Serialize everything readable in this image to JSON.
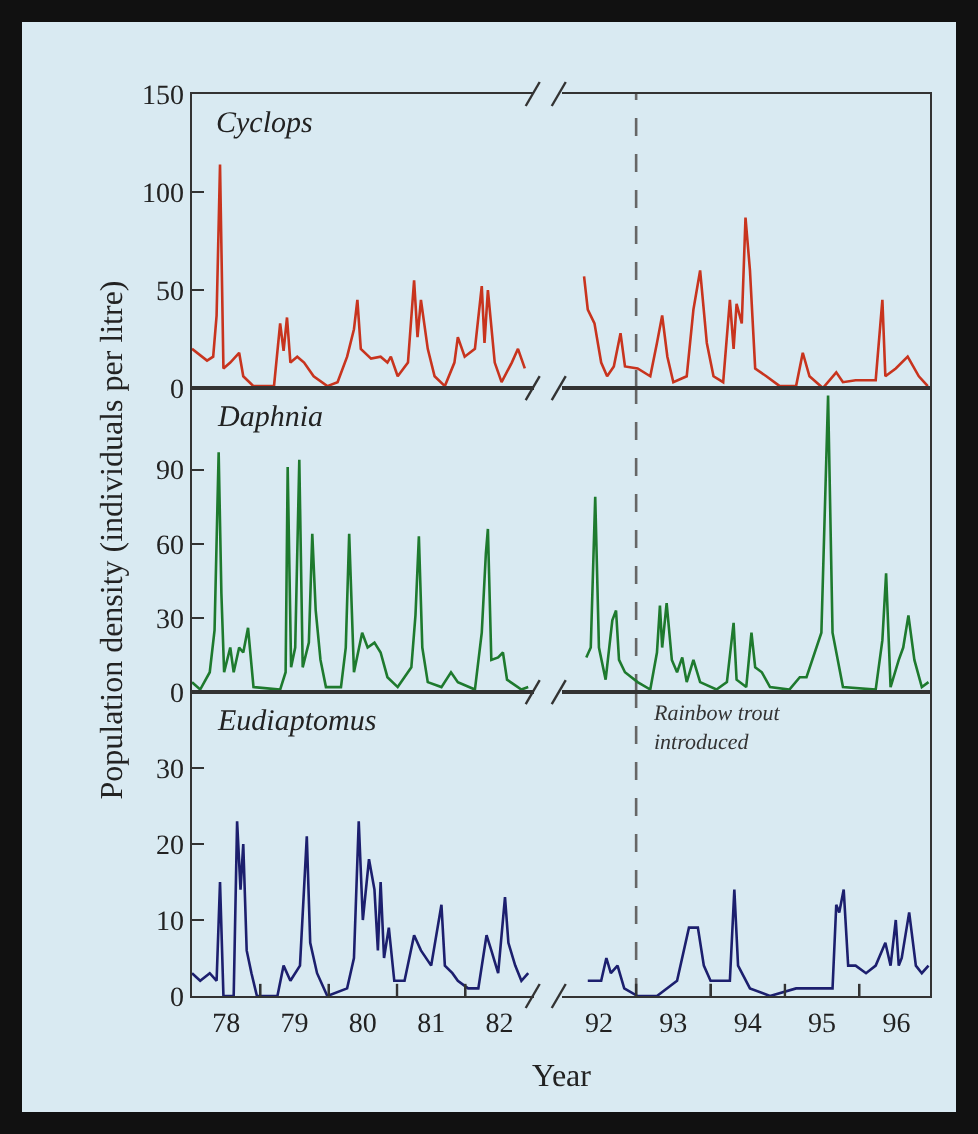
{
  "chart_data": [
    {
      "type": "line",
      "annotations": [
        "Cyclops"
      ],
      "tick_labels": "y",
      "xlim": [
        77.5,
        82.5
      ],
      "ylim": [
        0,
        150
      ],
      "yticks": [
        0,
        50,
        100,
        150
      ],
      "xticks": [
        78,
        79,
        80,
        81,
        82
      ],
      "x": [
        77.5,
        77.72,
        77.81,
        77.86,
        77.91,
        77.96,
        78.06,
        78.19,
        78.25,
        78.4,
        78.7,
        78.79,
        78.84,
        78.89,
        78.94,
        79.04,
        79.14,
        79.28,
        79.48,
        79.63,
        79.77,
        79.87,
        79.92,
        79.97,
        80.12,
        80.26,
        80.36,
        80.41,
        80.51,
        80.66,
        80.75,
        80.8,
        80.85,
        80.95,
        81.05,
        81.2,
        81.34,
        81.39,
        81.49,
        81.64,
        81.74,
        81.78,
        81.83,
        81.93,
        82.03,
        82.18,
        82.27,
        82.37
      ],
      "series": [
        {
          "color": "#c8341e",
          "values": [
            20,
            14,
            16,
            37,
            114,
            10,
            13,
            18,
            6,
            1,
            1,
            33,
            19,
            36,
            13,
            16,
            13,
            6,
            1,
            3,
            16,
            30,
            45,
            20,
            15,
            16,
            13,
            16,
            6,
            13,
            55,
            26,
            45,
            20,
            6,
            1,
            13,
            26,
            16,
            20,
            52,
            23,
            50,
            13,
            3,
            13,
            20,
            10
          ]
        }
      ]
    },
    {
      "type": "line",
      "tick_labels": false,
      "xlim": [
        91.5,
        96.45
      ],
      "ylim": [
        0,
        150
      ],
      "yticks": [
        0,
        50,
        100,
        150
      ],
      "xticks": [
        92,
        93,
        94,
        95,
        96
      ],
      "ref_lines": [
        {
          "axis": "x",
          "value": 92.5,
          "color": "#666666",
          "line_style": "dashed"
        }
      ],
      "x": [
        91.8,
        91.85,
        91.94,
        92.03,
        92.11,
        92.2,
        92.29,
        92.35,
        92.52,
        92.69,
        92.78,
        92.85,
        92.92,
        93.0,
        93.18,
        93.27,
        93.36,
        93.45,
        93.54,
        93.67,
        93.76,
        93.81,
        93.85,
        93.92,
        93.97,
        94.03,
        94.1,
        94.25,
        94.43,
        94.65,
        94.74,
        94.83,
        95.01,
        95.19,
        95.28,
        95.45,
        95.72,
        95.81,
        95.85,
        95.99,
        96.15,
        96.3,
        96.42
      ],
      "series": [
        {
          "color": "#c8341e",
          "values": [
            57,
            40,
            33,
            13,
            6,
            11,
            28,
            11,
            10,
            6,
            23,
            37,
            16,
            3,
            6,
            40,
            60,
            23,
            6,
            3,
            45,
            20,
            43,
            33,
            87,
            60,
            10,
            6,
            1,
            1,
            18,
            6,
            0,
            8,
            3,
            4,
            4,
            45,
            6,
            10,
            16,
            6,
            1
          ]
        }
      ]
    },
    {
      "type": "line",
      "annotations": [
        "Daphnia"
      ],
      "tick_labels": "y",
      "ylabel": "Population density (individuals per litre)",
      "xlim": [
        77.5,
        82.5
      ],
      "ylim": [
        0,
        123
      ],
      "yticks": [
        0,
        30,
        60,
        90
      ],
      "xticks": [
        78,
        79,
        80,
        81,
        82
      ],
      "x": [
        77.5,
        77.62,
        77.76,
        77.83,
        77.89,
        77.93,
        77.97,
        78.06,
        78.11,
        78.19,
        78.25,
        78.32,
        78.4,
        78.79,
        78.87,
        78.9,
        78.95,
        79.01,
        79.07,
        79.12,
        79.21,
        79.26,
        79.31,
        79.38,
        79.46,
        79.68,
        79.75,
        79.8,
        79.87,
        79.99,
        80.07,
        80.17,
        80.26,
        80.36,
        80.51,
        80.71,
        80.77,
        80.82,
        80.87,
        80.95,
        81.15,
        81.29,
        81.39,
        81.64,
        81.74,
        81.8,
        81.83,
        81.88,
        81.98,
        82.05,
        82.11,
        82.32,
        82.42
      ],
      "series": [
        {
          "color": "#1e7a2e",
          "values": [
            4,
            1,
            8,
            25,
            97,
            40,
            8,
            18,
            8,
            18,
            16,
            26,
            2,
            1,
            8,
            91,
            10,
            18,
            94,
            10,
            20,
            64,
            33,
            13,
            2,
            2,
            18,
            64,
            8,
            24,
            18,
            20,
            16,
            6,
            2,
            10,
            31,
            63,
            18,
            4,
            2,
            8,
            4,
            1,
            24,
            56,
            66,
            13,
            14,
            16,
            5,
            1,
            2
          ]
        }
      ]
    },
    {
      "type": "line",
      "tick_labels": false,
      "xlim": [
        91.5,
        96.45
      ],
      "ylim": [
        0,
        123
      ],
      "yticks": [
        0,
        30,
        60,
        90
      ],
      "xticks": [
        92,
        93,
        94,
        95,
        96
      ],
      "ref_lines": [
        {
          "axis": "x",
          "value": 92.5,
          "color": "#666666",
          "line_style": "dashed"
        }
      ],
      "x": [
        91.83,
        91.89,
        91.95,
        92.0,
        92.09,
        92.18,
        92.23,
        92.27,
        92.35,
        92.52,
        92.69,
        92.78,
        92.82,
        92.85,
        92.91,
        92.98,
        93.05,
        93.12,
        93.18,
        93.27,
        93.36,
        93.58,
        93.72,
        93.81,
        93.85,
        93.98,
        94.05,
        94.1,
        94.19,
        94.3,
        94.56,
        94.7,
        94.79,
        94.99,
        95.08,
        95.14,
        95.28,
        95.72,
        95.81,
        95.86,
        95.92,
        96.03,
        96.09,
        96.16,
        96.24,
        96.34,
        96.43
      ],
      "series": [
        {
          "color": "#1e7a2e",
          "values": [
            14,
            18,
            79,
            18,
            5,
            29,
            33,
            13,
            8,
            4,
            1,
            16,
            35,
            18,
            36,
            13,
            8,
            14,
            4,
            13,
            4,
            1,
            4,
            28,
            5,
            2,
            24,
            10,
            8,
            2,
            1,
            6,
            6,
            24,
            120,
            24,
            2,
            1,
            21,
            48,
            2,
            13,
            18,
            31,
            13,
            2,
            4
          ]
        }
      ]
    },
    {
      "type": "line",
      "annotations": [
        "Eudiaptomus"
      ],
      "xlabel": "Year",
      "xlim": [
        77.5,
        82.5
      ],
      "ylim": [
        0,
        40
      ],
      "yticks": [
        0,
        10,
        20,
        30
      ],
      "xticks": [
        78,
        {
          "value": 78.5,
          "label": null
        },
        79,
        {
          "value": 79.5,
          "label": null
        },
        80,
        {
          "value": 80.5,
          "label": null
        },
        81,
        {
          "value": 81.5,
          "label": null
        },
        82
      ],
      "x": [
        77.5,
        77.62,
        77.76,
        77.86,
        77.91,
        77.96,
        78.11,
        78.16,
        78.21,
        78.25,
        78.3,
        78.37,
        78.45,
        78.75,
        78.84,
        78.94,
        79.08,
        79.18,
        79.23,
        79.33,
        79.48,
        79.77,
        79.87,
        79.94,
        80.0,
        80.09,
        80.17,
        80.22,
        80.26,
        80.31,
        80.38,
        80.46,
        80.61,
        80.75,
        80.85,
        81.0,
        81.15,
        81.2,
        81.31,
        81.39,
        81.54,
        81.69,
        81.81,
        81.88,
        81.98,
        82.08,
        82.13,
        82.23,
        82.32,
        82.42
      ],
      "series": [
        {
          "color": "#1c1f6e",
          "values": [
            3,
            2,
            3,
            2,
            15,
            0,
            0,
            23,
            14,
            20,
            6,
            3,
            0,
            0,
            4,
            2,
            4,
            21,
            7,
            3,
            0,
            1,
            5,
            23,
            10,
            18,
            14,
            6,
            15,
            5,
            9,
            2,
            2,
            8,
            6,
            4,
            12,
            4,
            3,
            2,
            1,
            1,
            8,
            6,
            3,
            13,
            7,
            4,
            2,
            3
          ]
        }
      ]
    },
    {
      "type": "line",
      "tick_labels": "x",
      "xlim": [
        91.5,
        96.45
      ],
      "ylim": [
        0,
        40
      ],
      "yticks": [
        0,
        10,
        20,
        30
      ],
      "xticks": [
        92,
        {
          "value": 92.5,
          "label": null
        },
        93,
        {
          "value": 93.5,
          "label": null
        },
        94,
        {
          "value": 94.5,
          "label": null
        },
        95,
        {
          "value": 95.5,
          "label": null
        },
        96
      ],
      "ref_lines": [
        {
          "axis": "x",
          "value": 92.5,
          "color": "#666666",
          "line_style": "dashed",
          "label": "Rainbow trout introduced"
        }
      ],
      "x": [
        91.85,
        92.03,
        92.1,
        92.16,
        92.25,
        92.34,
        92.52,
        92.78,
        93.05,
        93.21,
        93.33,
        93.41,
        93.5,
        93.76,
        93.82,
        93.87,
        94.03,
        94.3,
        94.65,
        94.92,
        95.14,
        95.19,
        95.23,
        95.29,
        95.35,
        95.45,
        95.59,
        95.72,
        95.85,
        95.92,
        95.99,
        96.03,
        96.07,
        96.17,
        96.26,
        96.34,
        96.43
      ],
      "series": [
        {
          "color": "#1c1f6e",
          "values": [
            2,
            2,
            5,
            3,
            4,
            1,
            0,
            0,
            2,
            9,
            9,
            4,
            2,
            2,
            14,
            4,
            1,
            0,
            1,
            1,
            1,
            12,
            11,
            14,
            4,
            4,
            3,
            4,
            7,
            4,
            10,
            4,
            5,
            11,
            4,
            3,
            4
          ]
        }
      ]
    }
  ]
}
